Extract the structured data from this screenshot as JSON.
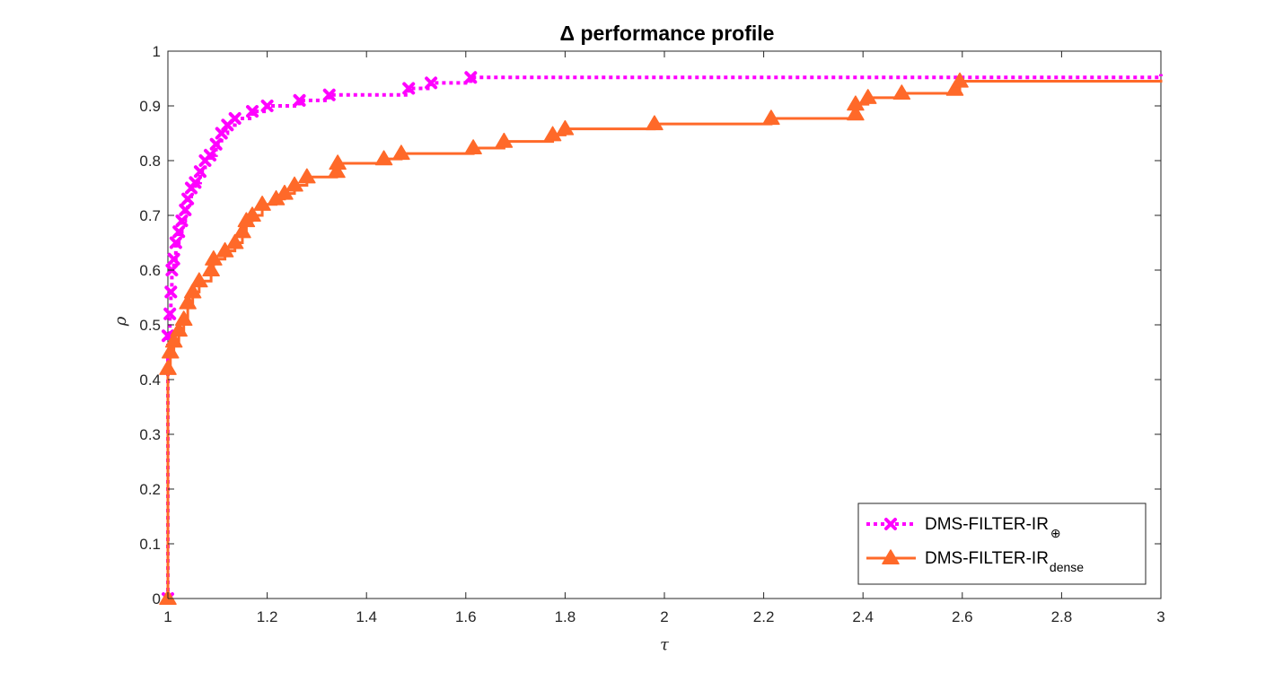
{
  "chart_data": {
    "type": "line",
    "title": "Δ performance profile",
    "xlabel": "τ",
    "ylabel": "ρ",
    "xlim": [
      1,
      3
    ],
    "ylim": [
      0,
      1
    ],
    "xticks": [
      1,
      1.2,
      1.4,
      1.6,
      1.8,
      2,
      2.2,
      2.4,
      2.6,
      2.8,
      3
    ],
    "xtick_labels": [
      "1",
      "1.2",
      "1.4",
      "1.6",
      "1.8",
      "2",
      "2.2",
      "2.4",
      "2.6",
      "2.8",
      "3"
    ],
    "yticks": [
      0,
      0.1,
      0.2,
      0.3,
      0.4,
      0.5,
      0.6,
      0.7,
      0.8,
      0.9,
      1
    ],
    "ytick_labels": [
      "0",
      "0.1",
      "0.2",
      "0.3",
      "0.4",
      "0.5",
      "0.6",
      "0.7",
      "0.8",
      "0.9",
      "1"
    ],
    "grid": false,
    "legend_position": "bottom-right",
    "series": [
      {
        "name_main": "DMS-FILTER-IR",
        "name_sub": "⊕",
        "color": "#ff00ff",
        "line_style": "dotted",
        "marker": "x",
        "points": [
          [
            1.0,
            0.0
          ],
          [
            1.0,
            0.48
          ],
          [
            1.004,
            0.52
          ],
          [
            1.006,
            0.56
          ],
          [
            1.008,
            0.6
          ],
          [
            1.012,
            0.62
          ],
          [
            1.016,
            0.65
          ],
          [
            1.022,
            0.67
          ],
          [
            1.028,
            0.69
          ],
          [
            1.035,
            0.71
          ],
          [
            1.04,
            0.73
          ],
          [
            1.047,
            0.75
          ],
          [
            1.055,
            0.76
          ],
          [
            1.065,
            0.78
          ],
          [
            1.075,
            0.8
          ],
          [
            1.085,
            0.81
          ],
          [
            1.097,
            0.83
          ],
          [
            1.108,
            0.85
          ],
          [
            1.12,
            0.865
          ],
          [
            1.135,
            0.877
          ],
          [
            1.17,
            0.89
          ],
          [
            1.2,
            0.9
          ],
          [
            1.265,
            0.91
          ],
          [
            1.325,
            0.92
          ],
          [
            1.485,
            0.932
          ],
          [
            1.53,
            0.942
          ],
          [
            1.61,
            0.952
          ],
          [
            3.0,
            0.958
          ]
        ]
      },
      {
        "name_main": "DMS-FILTER-IR",
        "name_sub": "dense",
        "color": "#ff6929",
        "line_style": "solid",
        "marker": "triangle",
        "points": [
          [
            1.0,
            0.0
          ],
          [
            1.0,
            0.42
          ],
          [
            1.005,
            0.45
          ],
          [
            1.012,
            0.47
          ],
          [
            1.022,
            0.49
          ],
          [
            1.032,
            0.51
          ],
          [
            1.04,
            0.54
          ],
          [
            1.05,
            0.56
          ],
          [
            1.063,
            0.58
          ],
          [
            1.087,
            0.6
          ],
          [
            1.092,
            0.62
          ],
          [
            1.115,
            0.635
          ],
          [
            1.135,
            0.65
          ],
          [
            1.15,
            0.67
          ],
          [
            1.158,
            0.69
          ],
          [
            1.17,
            0.7
          ],
          [
            1.19,
            0.72
          ],
          [
            1.218,
            0.73
          ],
          [
            1.235,
            0.74
          ],
          [
            1.255,
            0.755
          ],
          [
            1.28,
            0.77
          ],
          [
            1.34,
            0.78
          ],
          [
            1.342,
            0.795
          ],
          [
            1.435,
            0.803
          ],
          [
            1.47,
            0.813
          ],
          [
            1.615,
            0.823
          ],
          [
            1.677,
            0.835
          ],
          [
            1.775,
            0.847
          ],
          [
            1.8,
            0.858
          ],
          [
            1.98,
            0.867
          ],
          [
            2.215,
            0.877
          ],
          [
            2.385,
            0.885
          ],
          [
            2.385,
            0.903
          ],
          [
            2.41,
            0.915
          ],
          [
            2.478,
            0.923
          ],
          [
            2.585,
            0.93
          ],
          [
            2.595,
            0.945
          ],
          [
            3.0,
            0.948
          ]
        ]
      }
    ]
  }
}
